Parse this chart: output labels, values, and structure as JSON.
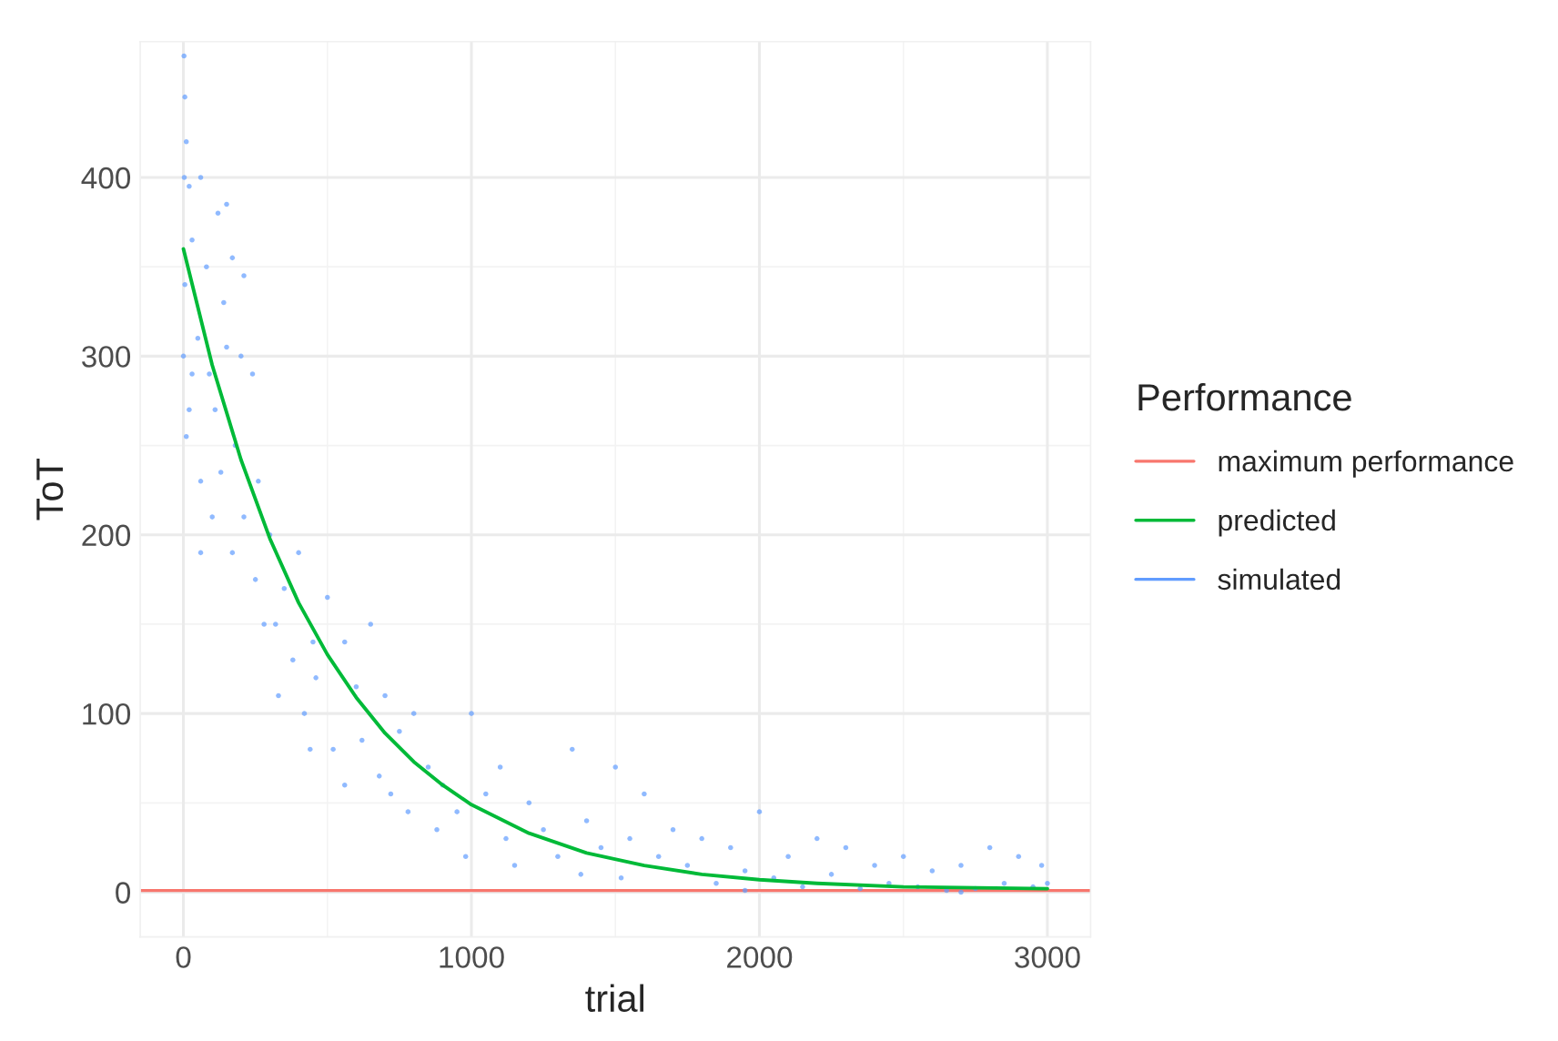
{
  "chart_data": {
    "type": "line",
    "xlabel": "trial",
    "ylabel": "ToT",
    "legend_title": "Performance",
    "legend": "right",
    "grid": true,
    "xlim": [
      -150,
      3150
    ],
    "ylim": [
      -25,
      476
    ],
    "xticks": [
      0,
      1000,
      2000,
      3000
    ],
    "yticks": [
      0,
      100,
      200,
      300,
      400
    ],
    "ref_lines": [
      {
        "axis": "y",
        "value": 1,
        "label": "maximum performance",
        "color": "#f8766d"
      }
    ],
    "series": [
      {
        "name": "predicted",
        "color": "#00ba38",
        "x": [
          0,
          100,
          200,
          300,
          400,
          500,
          600,
          700,
          800,
          900,
          1000,
          1200,
          1400,
          1600,
          1800,
          2000,
          2200,
          2500,
          3000
        ],
        "values": [
          360,
          295,
          242,
          198,
          162,
          133,
          109,
          89,
          73,
          60,
          49,
          33,
          22,
          15,
          10,
          7,
          5,
          3,
          2
        ]
      },
      {
        "name": "simulated",
        "type": "scatter",
        "color": "#619cff",
        "marker": "circle",
        "x": [
          2,
          5,
          10,
          3,
          20,
          60,
          120,
          150,
          5,
          30,
          80,
          170,
          140,
          210,
          0,
          20,
          50,
          90,
          10,
          30,
          110,
          150,
          200,
          240,
          180,
          130,
          60,
          100,
          60,
          210,
          260,
          300,
          250,
          170,
          320,
          280,
          350,
          400,
          380,
          330,
          420,
          450,
          500,
          460,
          520,
          440,
          560,
          600,
          650,
          620,
          560,
          700,
          750,
          680,
          800,
          720,
          850,
          780,
          900,
          1000,
          950,
          880,
          1050,
          1100,
          980,
          1120,
          1200,
          1150,
          1250,
          1350,
          1300,
          1400,
          1450,
          1500,
          1380,
          1550,
          1600,
          1650,
          1520,
          1700,
          1750,
          1800,
          1850,
          1900,
          1950,
          2000,
          2050,
          2100,
          2150,
          2200,
          2250,
          2300,
          2350,
          2400,
          2450,
          2500,
          2550,
          2600,
          2650,
          2700,
          2750,
          2800,
          2850,
          2900,
          2950,
          3000,
          2980,
          1950,
          2700
        ],
        "values": [
          468,
          445,
          420,
          400,
          395,
          400,
          380,
          385,
          340,
          365,
          350,
          355,
          330,
          345,
          300,
          270,
          310,
          290,
          255,
          290,
          270,
          305,
          300,
          290,
          250,
          235,
          230,
          210,
          190,
          210,
          230,
          200,
          175,
          190,
          150,
          150,
          170,
          190,
          130,
          110,
          100,
          140,
          165,
          120,
          80,
          80,
          140,
          115,
          150,
          85,
          60,
          110,
          90,
          65,
          100,
          55,
          70,
          45,
          60,
          100,
          45,
          35,
          55,
          70,
          20,
          30,
          50,
          15,
          35,
          80,
          20,
          40,
          25,
          70,
          10,
          30,
          55,
          20,
          8,
          35,
          15,
          30,
          5,
          25,
          12,
          45,
          8,
          20,
          3,
          30,
          10,
          25,
          2,
          15,
          5,
          20,
          3,
          12,
          1,
          15,
          2,
          25,
          5,
          20,
          3,
          5,
          15,
          1,
          0
        ]
      }
    ]
  }
}
